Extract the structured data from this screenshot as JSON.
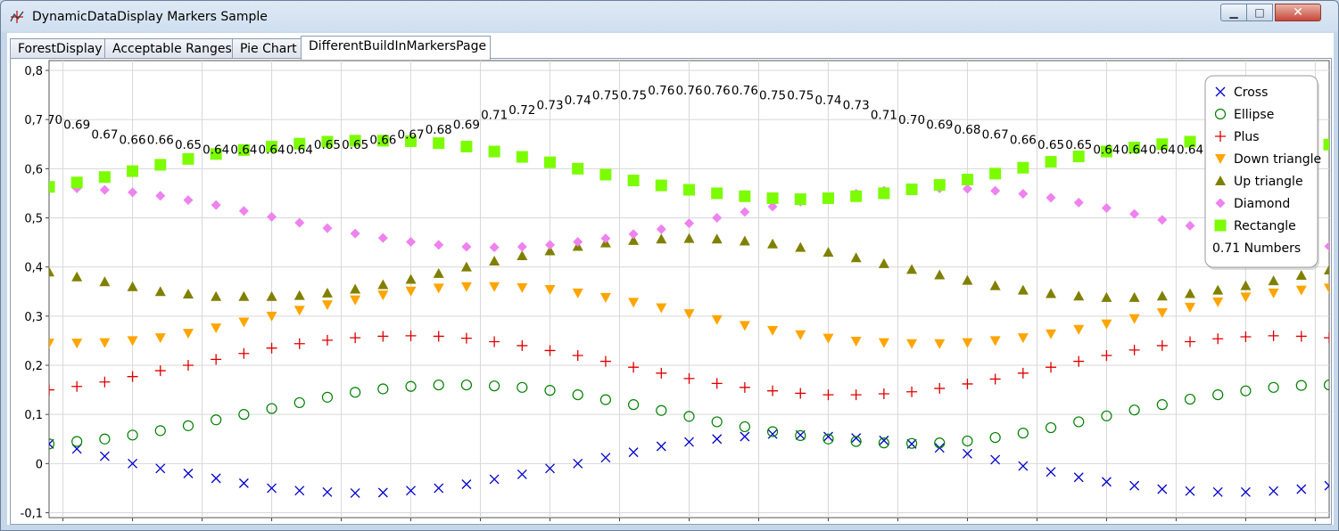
{
  "window": {
    "title": "DynamicDataDisplay Markers Sample"
  },
  "tabs": [
    {
      "label": "ForestDisplay"
    },
    {
      "label": "Acceptable Ranges"
    },
    {
      "label": "Pie Chart"
    },
    {
      "label": "DifferentBuildInMarkersPage"
    }
  ],
  "legend": [
    {
      "label": "Cross",
      "marker": "cross",
      "color": "#0000cc"
    },
    {
      "label": "Ellipse",
      "marker": "ellipse",
      "color": "#008000"
    },
    {
      "label": "Plus",
      "marker": "plus",
      "color": "#dd0000"
    },
    {
      "label": "Down triangle",
      "marker": "down-triangle",
      "color": "#ffa500"
    },
    {
      "label": "Up triangle",
      "marker": "up-triangle",
      "color": "#808000"
    },
    {
      "label": "Diamond",
      "marker": "diamond",
      "color": "#ee82ee"
    },
    {
      "label": "Rectangle",
      "marker": "rectangle",
      "color": "#7cfc00"
    },
    {
      "label": "0.71 Numbers",
      "marker": "none",
      "color": "#000000"
    }
  ],
  "chart_data": {
    "type": "scatter",
    "decimal_separator": ",",
    "grid": true,
    "legend_position": "top-right",
    "xlim": [
      0.04,
      0.96
    ],
    "ylim": [
      -0.11,
      0.82
    ],
    "x_ticks": [
      "0,05",
      "0,1",
      "0,15",
      "0,2",
      "0,25",
      "0,3",
      "0,35",
      "0,4",
      "0,45",
      "0,5",
      "0,55",
      "0,6",
      "0,65",
      "0,7",
      "0,75",
      "0,8",
      "0,85",
      "0,9",
      "0,95"
    ],
    "y_ticks": [
      "-0,1",
      "0",
      "0,1",
      "0,2",
      "0,3",
      "0,4",
      "0,5",
      "0,6",
      "0,7",
      "0,8"
    ],
    "x": [
      0.04,
      0.06,
      0.08,
      0.1,
      0.12,
      0.14,
      0.16,
      0.18,
      0.2,
      0.22,
      0.24,
      0.26,
      0.28,
      0.3,
      0.32,
      0.34,
      0.36,
      0.38,
      0.4,
      0.42,
      0.44,
      0.46,
      0.48,
      0.5,
      0.52,
      0.54,
      0.56,
      0.58,
      0.6,
      0.62,
      0.64,
      0.66,
      0.68,
      0.7,
      0.72,
      0.74,
      0.76,
      0.78,
      0.8,
      0.82,
      0.84,
      0.86,
      0.88,
      0.9,
      0.92,
      0.94,
      0.96
    ],
    "series": [
      {
        "name": "Cross",
        "values": [
          0.04,
          0.03,
          0.015,
          0.0,
          -0.01,
          -0.02,
          -0.03,
          -0.04,
          -0.05,
          -0.055,
          -0.058,
          -0.06,
          -0.059,
          -0.055,
          -0.05,
          -0.042,
          -0.032,
          -0.022,
          -0.01,
          0.0,
          0.012,
          0.023,
          0.035,
          0.044,
          0.05,
          0.055,
          0.06,
          0.058,
          0.055,
          0.052,
          0.047,
          0.04,
          0.032,
          0.02,
          0.008,
          -0.005,
          -0.017,
          -0.028,
          -0.037,
          -0.045,
          -0.052,
          -0.056,
          -0.058,
          -0.058,
          -0.056,
          -0.052,
          -0.045
        ]
      },
      {
        "name": "Ellipse",
        "values": [
          0.04,
          0.045,
          0.05,
          0.058,
          0.067,
          0.077,
          0.089,
          0.1,
          0.112,
          0.124,
          0.135,
          0.145,
          0.152,
          0.157,
          0.16,
          0.16,
          0.158,
          0.155,
          0.149,
          0.14,
          0.13,
          0.12,
          0.108,
          0.096,
          0.085,
          0.075,
          0.065,
          0.057,
          0.05,
          0.045,
          0.042,
          0.041,
          0.042,
          0.046,
          0.053,
          0.062,
          0.073,
          0.085,
          0.097,
          0.109,
          0.12,
          0.131,
          0.14,
          0.148,
          0.155,
          0.159,
          0.16
        ]
      },
      {
        "name": "Plus",
        "values": [
          0.15,
          0.157,
          0.166,
          0.177,
          0.189,
          0.2,
          0.212,
          0.224,
          0.235,
          0.244,
          0.251,
          0.256,
          0.259,
          0.26,
          0.259,
          0.255,
          0.248,
          0.24,
          0.23,
          0.22,
          0.208,
          0.196,
          0.184,
          0.173,
          0.163,
          0.155,
          0.148,
          0.143,
          0.14,
          0.14,
          0.142,
          0.146,
          0.153,
          0.162,
          0.172,
          0.184,
          0.196,
          0.208,
          0.22,
          0.231,
          0.24,
          0.248,
          0.254,
          0.258,
          0.26,
          0.259,
          0.256
        ]
      },
      {
        "name": "Down triangle",
        "values": [
          0.245,
          0.245,
          0.246,
          0.25,
          0.256,
          0.265,
          0.276,
          0.288,
          0.3,
          0.312,
          0.323,
          0.333,
          0.343,
          0.351,
          0.357,
          0.36,
          0.36,
          0.358,
          0.354,
          0.347,
          0.338,
          0.328,
          0.317,
          0.305,
          0.293,
          0.281,
          0.271,
          0.262,
          0.255,
          0.249,
          0.246,
          0.244,
          0.244,
          0.246,
          0.25,
          0.256,
          0.264,
          0.273,
          0.284,
          0.295,
          0.307,
          0.318,
          0.329,
          0.339,
          0.347,
          0.353,
          0.357
        ]
      },
      {
        "name": "Up triangle",
        "values": [
          0.39,
          0.38,
          0.37,
          0.36,
          0.35,
          0.345,
          0.34,
          0.34,
          0.34,
          0.342,
          0.347,
          0.355,
          0.364,
          0.375,
          0.387,
          0.4,
          0.412,
          0.423,
          0.433,
          0.442,
          0.449,
          0.454,
          0.457,
          0.458,
          0.457,
          0.453,
          0.447,
          0.44,
          0.43,
          0.419,
          0.407,
          0.395,
          0.384,
          0.373,
          0.362,
          0.353,
          0.346,
          0.341,
          0.338,
          0.338,
          0.341,
          0.346,
          0.353,
          0.362,
          0.372,
          0.383,
          0.394
        ]
      },
      {
        "name": "Diamond",
        "values": [
          0.565,
          0.56,
          0.557,
          0.552,
          0.545,
          0.536,
          0.526,
          0.514,
          0.502,
          0.49,
          0.479,
          0.468,
          0.459,
          0.451,
          0.445,
          0.441,
          0.44,
          0.441,
          0.445,
          0.451,
          0.458,
          0.467,
          0.477,
          0.489,
          0.5,
          0.512,
          0.523,
          0.533,
          0.541,
          0.549,
          0.555,
          0.559,
          0.56,
          0.559,
          0.555,
          0.549,
          0.541,
          0.531,
          0.52,
          0.508,
          0.496,
          0.484,
          0.473,
          0.462,
          0.453,
          0.446,
          0.442
        ]
      },
      {
        "name": "Rectangle",
        "values": [
          0.563,
          0.572,
          0.583,
          0.595,
          0.608,
          0.62,
          0.63,
          0.638,
          0.645,
          0.651,
          0.655,
          0.657,
          0.657,
          0.656,
          0.652,
          0.645,
          0.635,
          0.624,
          0.613,
          0.6,
          0.588,
          0.576,
          0.566,
          0.557,
          0.55,
          0.544,
          0.54,
          0.538,
          0.54,
          0.544,
          0.55,
          0.558,
          0.567,
          0.578,
          0.59,
          0.602,
          0.614,
          0.625,
          0.635,
          0.643,
          0.65,
          0.655,
          0.658,
          0.658,
          0.657,
          0.654,
          0.649
        ]
      }
    ],
    "numbers": {
      "name": "0.71 Numbers",
      "labels": [
        "0.70",
        "0.69",
        "0.67",
        "0.66",
        "0.66",
        "0.65",
        "0.64",
        "0.64",
        "0.64",
        "0.64",
        "0.65",
        "0.65",
        "0.66",
        "0.67",
        "0.68",
        "0.69",
        "0.71",
        "0.72",
        "0.73",
        "0.74",
        "0.75",
        "0.75",
        "0.76",
        "0.76",
        "0.76",
        "0.76",
        "0.75",
        "0.75",
        "0.74",
        "0.73",
        "0.71",
        "0.70",
        "0.69",
        "0.68",
        "0.67",
        "0.66",
        "0.65",
        "0.65",
        "0.64",
        "0.64",
        "0.64",
        "0.64"
      ],
      "y": [
        0.7,
        0.69,
        0.67,
        0.66,
        0.66,
        0.65,
        0.64,
        0.64,
        0.64,
        0.64,
        0.65,
        0.65,
        0.66,
        0.67,
        0.68,
        0.69,
        0.71,
        0.72,
        0.73,
        0.74,
        0.75,
        0.75,
        0.76,
        0.76,
        0.76,
        0.76,
        0.75,
        0.75,
        0.74,
        0.73,
        0.71,
        0.7,
        0.69,
        0.68,
        0.67,
        0.66,
        0.65,
        0.65,
        0.64,
        0.64,
        0.64,
        0.64
      ]
    }
  }
}
